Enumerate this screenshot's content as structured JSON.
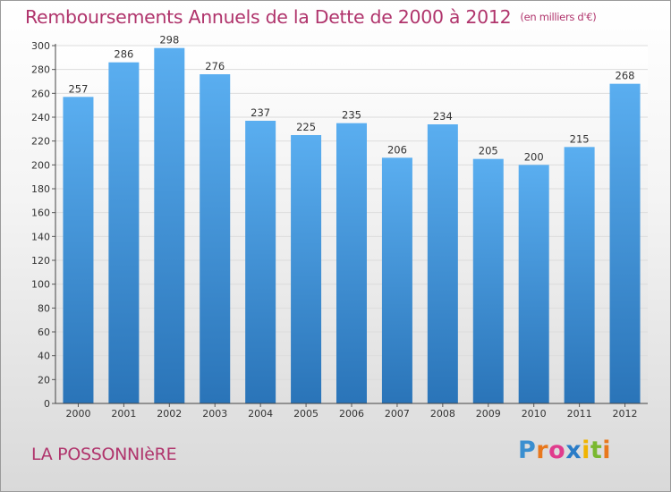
{
  "chart_data": {
    "type": "bar",
    "title": "Remboursements Annuels de la Dette de 2000 à 2012",
    "unit_label": "(en milliers d'€)",
    "categories": [
      "2000",
      "2001",
      "2002",
      "2003",
      "2004",
      "2005",
      "2006",
      "2007",
      "2008",
      "2009",
      "2010",
      "2011",
      "2012"
    ],
    "values": [
      257,
      286,
      298,
      276,
      237,
      225,
      235,
      206,
      234,
      205,
      200,
      215,
      268
    ],
    "xlabel": "",
    "ylabel": "",
    "ylim": [
      0,
      300
    ],
    "yticks": [
      0,
      20,
      40,
      60,
      80,
      100,
      120,
      140,
      160,
      180,
      200,
      220,
      240,
      260,
      280,
      300
    ],
    "grid": true,
    "bar_color": "#3f96dd"
  },
  "footer": {
    "location": "LA POSSONNIèRE",
    "brand_letters": [
      "P",
      "r",
      "o",
      "x",
      "i",
      "t",
      "i"
    ]
  }
}
